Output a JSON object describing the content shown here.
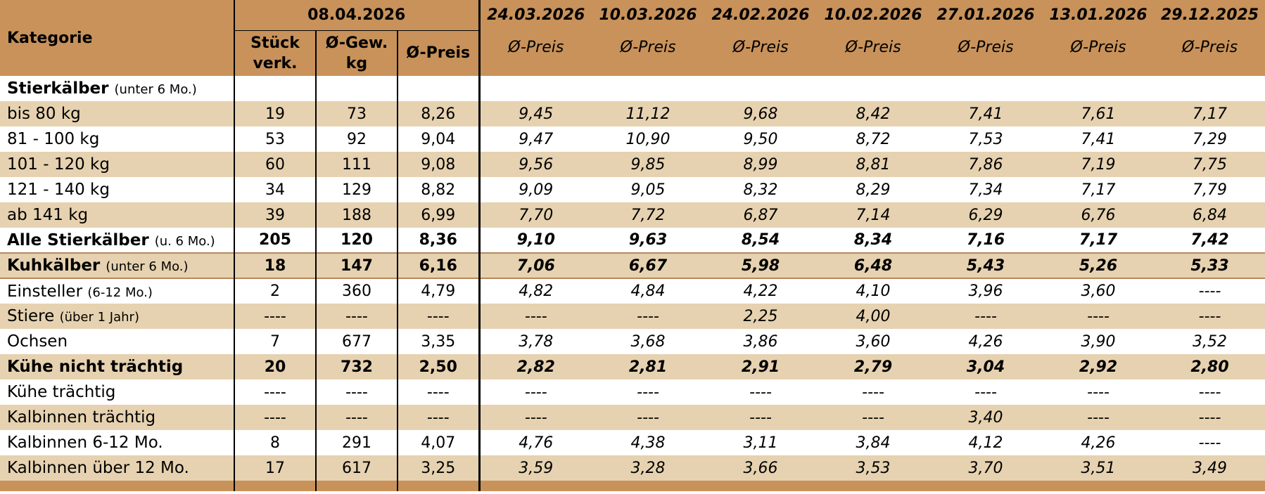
{
  "header": {
    "kategorie_label": "Kategorie",
    "current_date": "08.04.2026",
    "current_cols": {
      "stueck_line1": "Stück",
      "stueck_line2": "verk.",
      "gewicht_line1": "Ø-Gew.",
      "gewicht_line2": "kg",
      "preis": "Ø-Preis"
    },
    "previous_dates": [
      "24.03.2026",
      "10.03.2026",
      "24.02.2026",
      "10.02.2026",
      "27.01.2026",
      "13.01.2026",
      "29.12.2025"
    ],
    "previous_sub_label": "Ø-Preis"
  },
  "rows": [
    {
      "label": "Stierkälber",
      "note": "(unter 6 Mo.)",
      "bold": true,
      "shade": false,
      "sep": false,
      "stueck": "",
      "gewicht": "",
      "preis": "",
      "prev": [
        "",
        "",
        "",
        "",
        "",
        "",
        ""
      ]
    },
    {
      "label": "bis 80 kg",
      "note": "",
      "bold": false,
      "shade": true,
      "sep": false,
      "stueck": "19",
      "gewicht": "73",
      "preis": "8,26",
      "prev": [
        "9,45",
        "11,12",
        "9,68",
        "8,42",
        "7,41",
        "7,61",
        "7,17"
      ]
    },
    {
      "label": "81 - 100 kg",
      "note": "",
      "bold": false,
      "shade": false,
      "sep": false,
      "stueck": "53",
      "gewicht": "92",
      "preis": "9,04",
      "prev": [
        "9,47",
        "10,90",
        "9,50",
        "8,72",
        "7,53",
        "7,41",
        "7,29"
      ]
    },
    {
      "label": "101 - 120 kg",
      "note": "",
      "bold": false,
      "shade": true,
      "sep": false,
      "stueck": "60",
      "gewicht": "111",
      "preis": "9,08",
      "prev": [
        "9,56",
        "9,85",
        "8,99",
        "8,81",
        "7,86",
        "7,19",
        "7,75"
      ]
    },
    {
      "label": "121 - 140 kg",
      "note": "",
      "bold": false,
      "shade": false,
      "sep": false,
      "stueck": "34",
      "gewicht": "129",
      "preis": "8,82",
      "prev": [
        "9,09",
        "9,05",
        "8,32",
        "8,29",
        "7,34",
        "7,17",
        "7,79"
      ]
    },
    {
      "label": "ab 141 kg",
      "note": "",
      "bold": false,
      "shade": true,
      "sep": false,
      "stueck": "39",
      "gewicht": "188",
      "preis": "6,99",
      "prev": [
        "7,70",
        "7,72",
        "6,87",
        "7,14",
        "6,29",
        "6,76",
        "6,84"
      ]
    },
    {
      "label": "Alle Stierkälber",
      "note": "(u. 6 Mo.)",
      "bold": true,
      "shade": false,
      "sep": false,
      "stueck": "205",
      "gewicht": "120",
      "preis": "8,36",
      "prev": [
        "9,10",
        "9,63",
        "8,54",
        "8,34",
        "7,16",
        "7,17",
        "7,42"
      ]
    },
    {
      "label": "Kuhkälber",
      "note": "(unter 6 Mo.)",
      "bold": true,
      "shade": true,
      "sep": true,
      "stueck": "18",
      "gewicht": "147",
      "preis": "6,16",
      "prev": [
        "7,06",
        "6,67",
        "5,98",
        "6,48",
        "5,43",
        "5,26",
        "5,33"
      ]
    },
    {
      "label": "Einsteller",
      "note": "(6-12 Mo.)",
      "bold": false,
      "shade": false,
      "sep": true,
      "stueck": "2",
      "gewicht": "360",
      "preis": "4,79",
      "prev": [
        "4,82",
        "4,84",
        "4,22",
        "4,10",
        "3,96",
        "3,60",
        "----"
      ]
    },
    {
      "label": "Stiere",
      "note": "(über 1 Jahr)",
      "bold": false,
      "shade": true,
      "sep": false,
      "stueck": "----",
      "gewicht": "----",
      "preis": "----",
      "prev": [
        "----",
        "----",
        "2,25",
        "4,00",
        "----",
        "----",
        "----"
      ]
    },
    {
      "label": "Ochsen",
      "note": "",
      "bold": false,
      "shade": false,
      "sep": false,
      "stueck": "7",
      "gewicht": "677",
      "preis": "3,35",
      "prev": [
        "3,78",
        "3,68",
        "3,86",
        "3,60",
        "4,26",
        "3,90",
        "3,52"
      ]
    },
    {
      "label": "Kühe nicht trächtig",
      "note": "",
      "bold": true,
      "shade": true,
      "sep": false,
      "stueck": "20",
      "gewicht": "732",
      "preis": "2,50",
      "prev": [
        "2,82",
        "2,81",
        "2,91",
        "2,79",
        "3,04",
        "2,92",
        "2,80"
      ]
    },
    {
      "label": "Kühe trächtig",
      "note": "",
      "bold": false,
      "shade": false,
      "sep": false,
      "stueck": "----",
      "gewicht": "----",
      "preis": "----",
      "prev": [
        "----",
        "----",
        "----",
        "----",
        "----",
        "----",
        "----"
      ]
    },
    {
      "label": "Kalbinnen trächtig",
      "note": "",
      "bold": false,
      "shade": true,
      "sep": false,
      "stueck": "----",
      "gewicht": "----",
      "preis": "----",
      "prev": [
        "----",
        "----",
        "----",
        "----",
        "3,40",
        "----",
        "----"
      ]
    },
    {
      "label": "Kalbinnen 6-12 Mo.",
      "note": "",
      "bold": false,
      "shade": false,
      "sep": false,
      "stueck": "8",
      "gewicht": "291",
      "preis": "4,07",
      "prev": [
        "4,76",
        "4,38",
        "3,11",
        "3,84",
        "4,12",
        "4,26",
        "----"
      ]
    },
    {
      "label": "Kalbinnen über 12 Mo.",
      "note": "",
      "bold": false,
      "shade": true,
      "sep": false,
      "stueck": "17",
      "gewicht": "617",
      "preis": "3,25",
      "prev": [
        "3,59",
        "3,28",
        "3,66",
        "3,53",
        "3,70",
        "3,51",
        "3,49"
      ]
    }
  ]
}
